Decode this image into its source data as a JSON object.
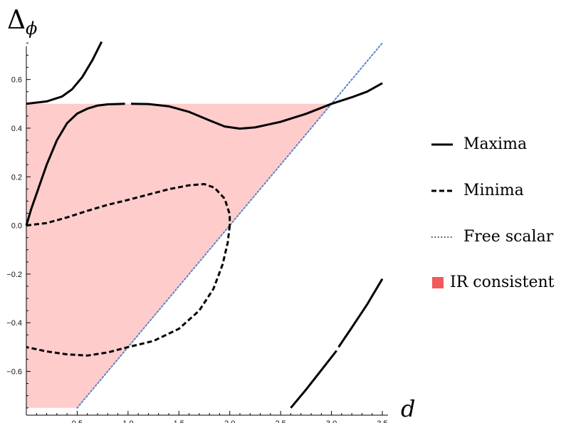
{
  "chart_data": {
    "type": "line",
    "title": "",
    "xlabel": "d",
    "ylabel": "Δ",
    "ylabel_sub": "ϕ",
    "xlim": [
      0,
      3.5
    ],
    "ylim": [
      -0.78,
      0.76
    ],
    "x_ticks": [
      0.5,
      1.0,
      1.5,
      2.0,
      2.5,
      3.0,
      3.5
    ],
    "x_tick_labels": [
      "0.5",
      "1.0",
      "1.5",
      "2.0",
      "2.5",
      "3.0",
      "3.5"
    ],
    "y_ticks": [
      0.6,
      0.4,
      0.2,
      0.0,
      -0.2,
      -0.4,
      -0.6
    ],
    "y_tick_labels": [
      "0.6",
      "0.4",
      "0.2",
      "0.0",
      "−0.2",
      "−0.4",
      "−0.6"
    ],
    "legend_position": "right",
    "legend": [
      {
        "label": "Maxima",
        "style": "solid"
      },
      {
        "label": "Minima",
        "style": "dashed"
      },
      {
        "label": "Free scalar",
        "style": "dotted"
      },
      {
        "label": "IR consistent",
        "style": "swatch"
      }
    ],
    "region": {
      "name": "IR consistent",
      "color": "#ffcccc",
      "swatch_color": "#f05a5a",
      "polygon": [
        [
          0,
          0.5
        ],
        [
          3.0,
          0.5
        ],
        [
          0.5,
          -0.75
        ],
        [
          0,
          -0.75
        ]
      ]
    },
    "series": [
      {
        "style": "dotted",
        "color": "#5b86c6",
        "width": 2,
        "points": [
          [
            0.5,
            -0.75
          ],
          [
            3.5,
            0.75
          ]
        ]
      },
      {
        "style": "solid",
        "color": "#000000",
        "width": 3,
        "points": [
          [
            0,
            0.5
          ],
          [
            0.2,
            0.51
          ],
          [
            0.35,
            0.53
          ],
          [
            0.45,
            0.56
          ],
          [
            0.55,
            0.61
          ],
          [
            0.65,
            0.68
          ],
          [
            0.74,
            0.755
          ]
        ]
      },
      {
        "style": "solid",
        "color": "#000000",
        "width": 3,
        "points": [
          [
            0,
            0
          ],
          [
            0.05,
            0.07
          ],
          [
            0.1,
            0.13
          ],
          [
            0.2,
            0.25
          ],
          [
            0.3,
            0.35
          ],
          [
            0.4,
            0.42
          ],
          [
            0.5,
            0.46
          ],
          [
            0.6,
            0.48
          ],
          [
            0.7,
            0.493
          ],
          [
            0.8,
            0.498
          ],
          [
            0.97,
            0.5
          ]
        ]
      },
      {
        "style": "solid",
        "color": "#000000",
        "width": 3,
        "points": [
          [
            1.03,
            0.5
          ],
          [
            1.2,
            0.499
          ],
          [
            1.4,
            0.49
          ],
          [
            1.6,
            0.467
          ],
          [
            1.8,
            0.432
          ],
          [
            1.95,
            0.407
          ],
          [
            2.1,
            0.398
          ],
          [
            2.25,
            0.403
          ],
          [
            2.5,
            0.426
          ],
          [
            2.75,
            0.459
          ],
          [
            3.0,
            0.5
          ],
          [
            3.2,
            0.527
          ],
          [
            3.35,
            0.55
          ],
          [
            3.5,
            0.585
          ]
        ]
      },
      {
        "style": "solid",
        "color": "#000000",
        "width": 3,
        "points": [
          [
            2.6,
            -0.75
          ],
          [
            2.75,
            -0.675
          ],
          [
            2.9,
            -0.595
          ],
          [
            3.05,
            -0.515
          ]
        ]
      },
      {
        "style": "solid",
        "color": "#000000",
        "width": 3,
        "points": [
          [
            3.07,
            -0.5
          ],
          [
            3.2,
            -0.42
          ],
          [
            3.35,
            -0.325
          ],
          [
            3.5,
            -0.22
          ]
        ]
      },
      {
        "style": "dashed",
        "color": "#000000",
        "width": 3,
        "points": [
          [
            0,
            0
          ],
          [
            0.2,
            0.01
          ],
          [
            0.4,
            0.033
          ],
          [
            0.6,
            0.06
          ],
          [
            0.8,
            0.085
          ],
          [
            1.0,
            0.105
          ],
          [
            1.2,
            0.127
          ],
          [
            1.4,
            0.149
          ],
          [
            1.6,
            0.165
          ],
          [
            1.75,
            0.17
          ],
          [
            1.85,
            0.155
          ],
          [
            1.95,
            0.11
          ],
          [
            2.0,
            0.045
          ],
          [
            2.0,
            0.0
          ]
        ]
      },
      {
        "style": "dashed",
        "color": "#000000",
        "width": 3,
        "points": [
          [
            2.0,
            0.0
          ],
          [
            1.98,
            -0.07
          ],
          [
            1.93,
            -0.16
          ],
          [
            1.84,
            -0.26
          ],
          [
            1.7,
            -0.35
          ],
          [
            1.5,
            -0.425
          ],
          [
            1.25,
            -0.475
          ],
          [
            1.0,
            -0.5
          ],
          [
            0.8,
            -0.522
          ],
          [
            0.6,
            -0.535
          ],
          [
            0.4,
            -0.53
          ],
          [
            0.2,
            -0.518
          ],
          [
            0,
            -0.5
          ]
        ]
      }
    ]
  }
}
